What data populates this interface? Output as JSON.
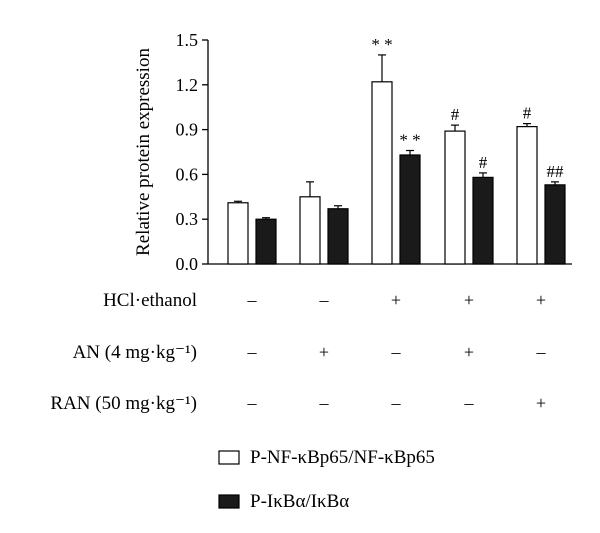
{
  "chart_data": {
    "type": "bar",
    "ylabel": "Relative protein expression",
    "ylim": [
      0,
      1.5
    ],
    "yticks": [
      "0.0",
      "0.3",
      "0.6",
      "0.9",
      "1.2",
      "1.5"
    ],
    "groups": 5,
    "series": [
      {
        "name": "P-NF-κBp65/NF-κBp65",
        "fill": "#ffffff",
        "values": [
          0.41,
          0.45,
          1.22,
          0.89,
          0.92
        ],
        "errors": [
          0.01,
          0.1,
          0.18,
          0.04,
          0.02
        ],
        "annotations": [
          "",
          "",
          "* *",
          "#",
          "#"
        ]
      },
      {
        "name": "P-IκBα/IκBα",
        "fill": "#1a1a1a",
        "values": [
          0.3,
          0.37,
          0.73,
          0.58,
          0.53
        ],
        "errors": [
          0.01,
          0.02,
          0.03,
          0.03,
          0.02
        ],
        "annotations": [
          "",
          "",
          "* *",
          "#",
          "##"
        ]
      }
    ],
    "conditions": [
      {
        "label": "HCl·ethanol",
        "signs": [
          "–",
          "–",
          "+",
          "+",
          "+"
        ]
      },
      {
        "label": "AN (4 mg·kg⁻¹)",
        "signs": [
          "–",
          "+",
          "–",
          "+",
          "–"
        ]
      },
      {
        "label": "RAN (50 mg·kg⁻¹)",
        "signs": [
          "–",
          "–",
          "–",
          "–",
          "+"
        ]
      }
    ],
    "legend_position": "bottom"
  }
}
